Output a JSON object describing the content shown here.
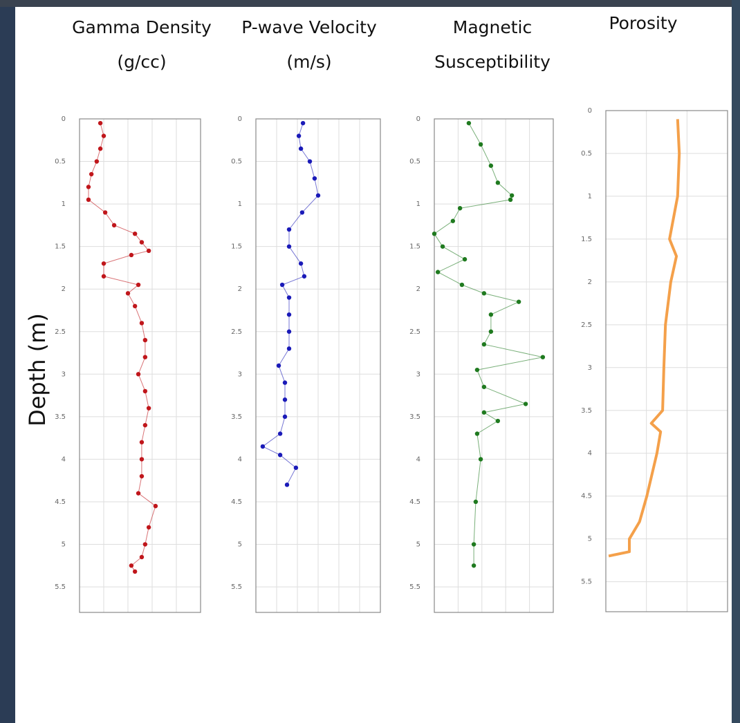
{
  "y_label": "Depth (m)",
  "chart_data": [
    {
      "type": "scatter",
      "title": [
        "Gamma Density",
        "(g/cc)"
      ],
      "color": "#c0161b",
      "ylim": [
        0,
        5.8
      ],
      "yticks": [
        0,
        0.5,
        1,
        1.5,
        2,
        2.5,
        3,
        3.5,
        4,
        4.5,
        5,
        5.5
      ],
      "xlim": [
        0,
        5
      ],
      "xticks": [
        0,
        1,
        2,
        3,
        4,
        5
      ],
      "grid": true,
      "x": [
        0.86,
        1.0,
        0.86,
        0.71,
        0.49,
        0.37,
        0.37,
        1.06,
        1.43,
        2.29,
        2.57,
        2.86,
        2.14,
        1.0,
        1.0,
        2.43,
        2.0,
        2.29,
        2.57,
        2.71,
        2.71,
        2.43,
        2.71,
        2.86,
        2.71,
        2.57,
        2.57,
        2.57,
        2.43,
        3.14,
        2.86,
        2.71,
        2.57,
        2.14,
        2.29
      ],
      "values": [
        0.05,
        0.2,
        0.35,
        0.5,
        0.65,
        0.8,
        0.95,
        1.1,
        1.25,
        1.35,
        1.45,
        1.55,
        1.6,
        1.7,
        1.85,
        1.95,
        2.05,
        2.2,
        2.4,
        2.6,
        2.8,
        3.0,
        3.2,
        3.4,
        3.6,
        3.8,
        4.0,
        4.2,
        4.4,
        4.55,
        4.8,
        5.0,
        5.15,
        5.25,
        5.32
      ]
    },
    {
      "type": "scatter",
      "title": [
        "P-wave Velocity",
        "(m/s)"
      ],
      "color": "#1a1ab8",
      "ylim": [
        0,
        5.8
      ],
      "yticks": [
        0,
        0.5,
        1,
        1.5,
        2,
        2.5,
        3,
        3.5,
        4,
        4.5,
        5,
        5.5
      ],
      "xlim": [
        0,
        6
      ],
      "xticks": [
        0,
        1,
        2,
        3,
        4,
        5,
        6
      ],
      "grid": true,
      "x": [
        2.27,
        2.07,
        2.17,
        2.6,
        2.83,
        3.0,
        2.23,
        1.6,
        1.6,
        2.17,
        2.33,
        1.27,
        1.6,
        1.6,
        1.6,
        1.6,
        1.1,
        1.4,
        1.4,
        1.4,
        1.17,
        0.33,
        1.17,
        1.93,
        1.5
      ],
      "values": [
        0.05,
        0.2,
        0.35,
        0.5,
        0.7,
        0.9,
        1.1,
        1.3,
        1.5,
        1.7,
        1.85,
        1.95,
        2.1,
        2.3,
        2.5,
        2.7,
        2.9,
        3.1,
        3.3,
        3.5,
        3.7,
        3.85,
        3.95,
        4.1,
        4.3
      ]
    },
    {
      "type": "scatter",
      "title": [
        "Magnetic",
        "Susceptibility"
      ],
      "color": "#1f7a1f",
      "ylim": [
        0,
        5.8
      ],
      "yticks": [
        0,
        0.5,
        1,
        1.5,
        2,
        2.5,
        3,
        3.5,
        4,
        4.5,
        5,
        5.5
      ],
      "xlim": [
        0,
        5
      ],
      "xticks": [
        0,
        1,
        2,
        3,
        4,
        5
      ],
      "grid": true,
      "x": [
        1.45,
        1.95,
        2.38,
        2.67,
        3.26,
        3.2,
        1.08,
        0.78,
        0,
        0.35,
        1.28,
        0.15,
        1.16,
        2.09,
        3.55,
        2.38,
        2.38,
        2.09,
        4.56,
        1.8,
        2.09,
        3.84,
        2.09,
        2.67,
        1.8,
        1.95,
        1.74,
        1.66,
        1.66
      ],
      "values": [
        0.05,
        0.3,
        0.55,
        0.75,
        0.9,
        0.95,
        1.05,
        1.2,
        1.35,
        1.5,
        1.65,
        1.8,
        1.95,
        2.05,
        2.15,
        2.3,
        2.5,
        2.65,
        2.8,
        2.95,
        3.15,
        3.35,
        3.45,
        3.55,
        3.7,
        4.0,
        4.5,
        5.0,
        5.25
      ]
    },
    {
      "type": "line",
      "title": [
        "Porosity"
      ],
      "color": "#f4a04a",
      "ylim": [
        0,
        5.85
      ],
      "yticks": [
        0,
        0.5,
        1,
        1.5,
        2,
        2.5,
        3,
        3.5,
        4,
        4.5,
        5,
        5.5
      ],
      "xlim": [
        0,
        3
      ],
      "xticks": [
        0,
        1,
        2,
        3
      ],
      "grid": true,
      "x": [
        1.77,
        1.81,
        1.77,
        1.57,
        1.74,
        1.6,
        1.47,
        1.43,
        1.4,
        1.12,
        1.35,
        1.26,
        1.01,
        0.83,
        0.58,
        0.58,
        0.07
      ],
      "values": [
        0.1,
        0.5,
        1.0,
        1.5,
        1.7,
        2.0,
        2.5,
        3.0,
        3.5,
        3.65,
        3.75,
        4.0,
        4.5,
        4.8,
        5.0,
        5.15,
        5.2
      ]
    }
  ]
}
